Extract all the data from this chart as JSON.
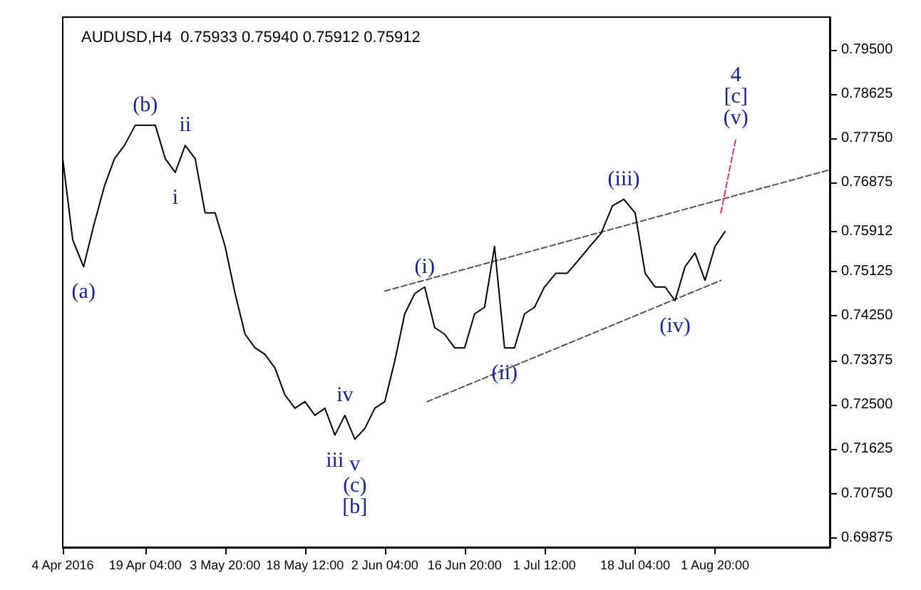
{
  "chart_data": {
    "type": "line",
    "title": "AUDUSD,H4  0.75933 0.75940 0.75912 0.75912",
    "x": [
      "2016-04-04T00:00",
      "2016-04-05T20:00",
      "2016-04-07T20:00",
      "2016-04-09T16:00",
      "2016-04-11T16:00",
      "2016-04-13T12:00",
      "2016-04-15T08:00",
      "2016-04-17T08:00",
      "2016-04-19T04:00",
      "2016-04-21T00:00",
      "2016-04-22T20:00",
      "2016-04-24T16:00",
      "2016-04-26T12:00",
      "2016-04-28T08:00",
      "2016-04-30T04:00",
      "2016-05-02T00:00",
      "2016-05-03T20:00",
      "2016-05-05T16:00",
      "2016-05-07T12:00",
      "2016-05-09T08:00",
      "2016-05-11T04:00",
      "2016-05-13T00:00",
      "2016-05-14T20:00",
      "2016-05-16T16:00",
      "2016-05-18T12:00",
      "2016-05-20T08:00",
      "2016-05-22T04:00",
      "2016-05-24T00:00",
      "2016-05-25T20:00",
      "2016-05-27T16:00",
      "2016-05-29T12:00",
      "2016-05-31T08:00",
      "2016-06-02T04:00",
      "2016-06-04T00:00",
      "2016-06-05T20:00",
      "2016-06-07T16:00",
      "2016-06-09T12:00",
      "2016-06-11T08:00",
      "2016-06-13T04:00",
      "2016-06-15T00:00",
      "2016-06-16T20:00",
      "2016-06-18T16:00",
      "2016-06-20T12:00",
      "2016-06-22T08:00",
      "2016-06-24T04:00",
      "2016-06-26T00:00",
      "2016-06-27T20:00",
      "2016-06-29T16:00",
      "2016-07-01T12:00",
      "2016-07-03T14:00",
      "2016-07-05T16:00",
      "2016-07-07T18:00",
      "2016-07-09T20:00",
      "2016-07-11T22:00",
      "2016-07-14T00:00",
      "2016-07-16T02:00",
      "2016-07-18T04:00",
      "2016-07-20T00:00",
      "2016-07-21T20:00",
      "2016-07-23T16:00",
      "2016-07-25T12:00",
      "2016-07-27T08:00",
      "2016-07-29T04:00",
      "2016-07-31T00:00",
      "2016-08-01T20:00",
      "2016-08-03T16:00"
    ],
    "series": [
      {
        "color": "#000000",
        "values": [
          0.7735,
          0.7575,
          0.7522,
          0.7602,
          0.7681,
          0.7735,
          0.7761,
          0.7801,
          0.7801,
          0.7801,
          0.7735,
          0.7708,
          0.7761,
          0.7735,
          0.7628,
          0.7628,
          0.7562,
          0.7469,
          0.7389,
          0.7362,
          0.7349,
          0.7322,
          0.7269,
          0.7243,
          0.7256,
          0.7229,
          0.7243,
          0.719,
          0.7229,
          0.7182,
          0.7203,
          0.7243,
          0.7256,
          0.7336,
          0.7429,
          0.7469,
          0.7482,
          0.7402,
          0.7389,
          0.7362,
          0.7362,
          0.7429,
          0.7442,
          0.7562,
          0.7362,
          0.7362,
          0.7429,
          0.7442,
          0.7482,
          0.7509,
          0.7509,
          0.7535,
          0.7562,
          0.7588,
          0.7642,
          0.7655,
          0.7628,
          0.7509,
          0.7482,
          0.7482,
          0.7455,
          0.7522,
          0.7549,
          0.7495,
          0.7562,
          0.7591
        ]
      },
      {
        "type": "line",
        "color": "#555555",
        "line_style": "dashed",
        "x": [
          "2016-06-02T04:00",
          "2016-08-22T22:00"
        ],
        "values": [
          0.7474,
          0.7713
        ]
      },
      {
        "type": "line",
        "color": "#555555",
        "line_style": "dashed",
        "x": [
          "2016-06-09T23:00",
          "2016-08-02T22:00"
        ],
        "values": [
          0.7256,
          0.7495
        ]
      },
      {
        "type": "line",
        "color": "#c0407a",
        "line_style": "dashed",
        "x": [
          "2016-08-02T22:00",
          "2016-08-05T16:00"
        ],
        "values": [
          0.7628,
          0.7775
        ]
      }
    ],
    "xlim": [
      "2016-04-04T00:00",
      "2016-08-22T22:00"
    ],
    "xticks": [
      {
        "value": "2016-04-04T00:00",
        "label": "4 Apr 2016"
      },
      {
        "value": "2016-04-19T04:00",
        "label": "19 Apr 04:00"
      },
      {
        "value": "2016-05-03T20:00",
        "label": "3 May 20:00"
      },
      {
        "value": "2016-05-18T12:00",
        "label": "18 May 12:00"
      },
      {
        "value": "2016-06-02T04:00",
        "label": "2 Jun 04:00"
      },
      {
        "value": "2016-06-16T20:00",
        "label": "16 Jun 20:00"
      },
      {
        "value": "2016-07-01T12:00",
        "label": "1 Jul 12:00"
      },
      {
        "value": "2016-07-18T04:00",
        "label": "18 Jul 04:00"
      },
      {
        "value": "2016-08-01T20:00",
        "label": "1 Aug 20:00"
      }
    ],
    "ylim": [
      0.6969,
      0.8014
    ],
    "yticks": [
      {
        "value": 0.69875,
        "label": "0.69875"
      },
      {
        "value": 0.7075,
        "label": "0.70750"
      },
      {
        "value": 0.71625,
        "label": "0.71625"
      },
      {
        "value": 0.725,
        "label": "0.72500"
      },
      {
        "value": 0.73375,
        "label": "0.73375"
      },
      {
        "value": 0.7425,
        "label": "0.74250"
      },
      {
        "value": 0.75125,
        "label": "0.75125"
      },
      {
        "value": 0.75912,
        "label": "0.75912"
      },
      {
        "value": 0.76875,
        "label": "0.76875"
      },
      {
        "value": 0.7775,
        "label": "0.77750"
      },
      {
        "value": 0.78625,
        "label": "0.78625"
      },
      {
        "value": 0.795,
        "label": "0.79500"
      }
    ],
    "annotations": [
      {
        "text": "(a)",
        "x": "2016-04-07T20:00",
        "y": 0.7522
      },
      {
        "text": "(b)",
        "x": "2016-04-19T04:00",
        "y": 0.7801
      },
      {
        "text": "ii",
        "x": "2016-04-26T12:00",
        "y": 0.7761
      },
      {
        "text": "i",
        "x": "2016-04-24T16:00",
        "y": 0.7708
      },
      {
        "text": "iv",
        "x": "2016-05-25T20:00",
        "y": 0.7229
      },
      {
        "text": "v",
        "x": "2016-05-27T16:00",
        "y": 0.7182
      },
      {
        "text": "iii",
        "x": "2016-05-24T00:00",
        "y": 0.719
      },
      {
        "text": "(c)",
        "x": "2016-05-27T16:00",
        "y": 0.7182
      },
      {
        "text": "[b]",
        "x": "2016-05-27T16:00",
        "y": 0.7182
      },
      {
        "text": "(i)",
        "x": "2016-06-09T12:00",
        "y": 0.7482
      },
      {
        "text": "(ii)",
        "x": "2016-06-24T04:00",
        "y": 0.7362
      },
      {
        "text": "(iii)",
        "x": "2016-07-16T02:00",
        "y": 0.7655
      },
      {
        "text": "(iv)",
        "x": "2016-07-25T12:00",
        "y": 0.7455
      },
      {
        "text": "(v)",
        "x": "2016-08-05T16:00",
        "y": 0.7775
      },
      {
        "text": "[c]",
        "x": "2016-08-05T16:00",
        "y": 0.7775
      },
      {
        "text": "4",
        "x": "2016-08-05T16:00",
        "y": 0.7775
      }
    ],
    "grid": false,
    "marker": "none"
  }
}
